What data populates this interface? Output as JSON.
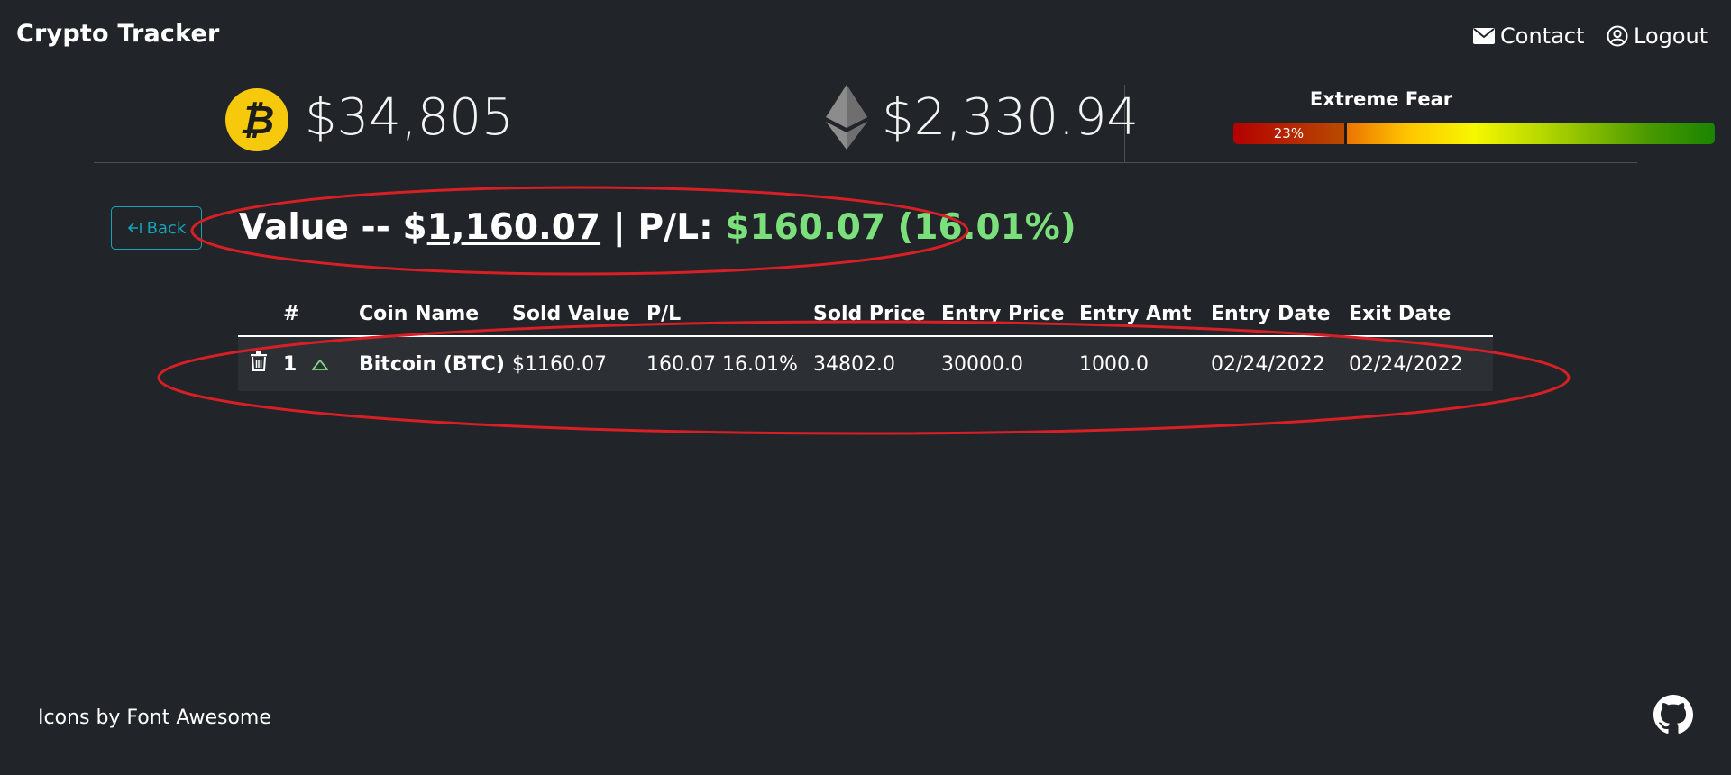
{
  "nav": {
    "brand": "Crypto Tracker",
    "contact_label": "Contact",
    "logout_label": "Logout"
  },
  "ticker": {
    "btc_price": "$34,805",
    "eth_price": "$2,330.94",
    "fear_title": "Extreme Fear",
    "fear_percent_label": "23%",
    "fear_value": 0.23
  },
  "summary": {
    "back_label": "Back",
    "value_prefix": "Value -- $",
    "value_amount": "1,160.07",
    "separator": " | P/L: ",
    "pl_text": "$160.07 (16.01%)"
  },
  "table": {
    "headers": [
      "#",
      "Coin Name",
      "Sold Value",
      "P/L",
      "Sold Price",
      "Entry Price",
      "Entry Amt",
      "Entry Date",
      "Exit Date"
    ],
    "rows": [
      {
        "num": "1",
        "coin": "Bitcoin (BTC)",
        "sold_value": "$1160.07",
        "pl": "160.07 16.01%",
        "sold_price": "34802.0",
        "entry_price": "30000.0",
        "entry_amt": "1000.0",
        "entry_date": "02/24/2022",
        "exit_date": "02/24/2022"
      }
    ]
  },
  "footer": {
    "credits": "Icons by Font Awesome"
  },
  "colors": {
    "background": "#212529",
    "profit_green": "#7be07b",
    "back_button": "#17a2b8",
    "annotation_red": "#d81f26"
  },
  "icons": [
    "envelope-icon",
    "user-circle-icon",
    "bitcoin-icon",
    "ethereum-icon",
    "back-arrow-icon",
    "trash-icon",
    "triangle-up-icon",
    "github-icon"
  ]
}
